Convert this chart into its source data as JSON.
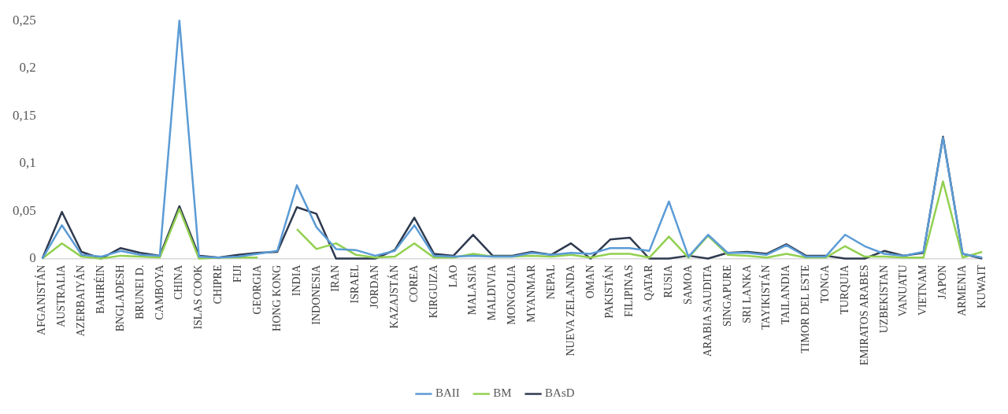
{
  "chart_data": {
    "type": "line",
    "categories": [
      "AFGANISTÁN",
      "AUSTRALIA",
      "AZERBAIYÁN",
      "BAHRÉIN",
      "BNGLADESH",
      "BRUNEI D.",
      "CAMBOYA",
      "CHINA",
      "ISLAS COOK",
      "CHIPRE",
      "FIJI",
      "GEORGIA",
      "HONG KONG",
      "INDIA",
      "INDONESIA",
      "IRAN",
      "ISRAEL",
      "JORDAN",
      "KAZAJSTÁN",
      "COREA",
      "KIRGUIZA",
      "LAO",
      "MALASIA",
      "MALDIVIA",
      "MONGOLIA",
      "MYANMAR",
      "NEPAL",
      "NUEVA ZELANDA",
      "OMAN",
      "PAKISTÁN",
      "FILIPINAS",
      "QATAR",
      "RUSIA",
      "SAMOA",
      "ARABIA SAUDITA",
      "SINGAPURE",
      "SRI LANKA",
      "TAYIKISTÁN",
      "TAILANDIA",
      "TIMOR DEL ESTE",
      "TONGA",
      "TURQUIA",
      "EMIRATOS ARABES",
      "UZBEKISTAN",
      "VANUATU",
      "VIETNAM",
      "JAPON",
      "ARMENIA",
      "KUWAIT"
    ],
    "series": [
      {
        "name": "BAII",
        "color": "#5b9bd5",
        "values": [
          0,
          0.035,
          0.004,
          0.002,
          0.008,
          0.004,
          0.003,
          0.25,
          0.002,
          0.001,
          0.002,
          0.005,
          0.008,
          0.077,
          0.033,
          0.01,
          0.009,
          0.003,
          0.008,
          0.035,
          0.003,
          0.002,
          0.003,
          0.002,
          0.002,
          0.006,
          0.004,
          0.006,
          0.005,
          0.011,
          0.011,
          0.008,
          0.06,
          0.002,
          0.025,
          0.006,
          0.006,
          0.004,
          0.014,
          0.002,
          0.002,
          0.025,
          0.013,
          0.005,
          0.003,
          0.007,
          0.127,
          0.005,
          0.001
        ]
      },
      {
        "name": "BM",
        "color": "#92d050",
        "values": [
          0,
          0.016,
          0.002,
          0,
          0.003,
          0.002,
          0.001,
          0.052,
          0,
          0.001,
          0.001,
          0.001,
          null,
          0.031,
          0.01,
          0.016,
          0.004,
          0.001,
          0.002,
          0.016,
          0.001,
          0.001,
          0.005,
          0.002,
          0.002,
          0.003,
          0.002,
          0.004,
          0.001,
          0.005,
          0.005,
          0.001,
          0.023,
          0.001,
          0.024,
          0.004,
          0.003,
          0.001,
          0.005,
          0.001,
          0.001,
          0.013,
          0.002,
          0.002,
          0.001,
          0.001,
          0.081,
          0.001,
          0.007
        ]
      },
      {
        "name": "BAsD",
        "color": "#2e3a4f",
        "values": [
          0,
          0.049,
          0.007,
          0,
          0.011,
          0.006,
          0.003,
          0.055,
          0.003,
          0.001,
          0.004,
          0.006,
          0.007,
          0.054,
          0.047,
          0,
          0,
          0,
          0.009,
          0.043,
          0.005,
          0.003,
          0.025,
          0.003,
          0.003,
          0.007,
          0.004,
          0.016,
          0,
          0.02,
          0.022,
          0,
          0,
          0.003,
          0,
          0.006,
          0.007,
          0.005,
          0.015,
          0.003,
          0.003,
          0,
          0,
          0.008,
          0.003,
          0.006,
          0.128,
          0.005,
          0
        ]
      }
    ],
    "ylim": [
      0,
      0.25
    ],
    "yticks": [
      0,
      {
        "value": 0.05,
        "label": "0,05"
      },
      {
        "value": 0.1,
        "label": "0,1"
      },
      {
        "value": 0.15,
        "label": "0,15"
      },
      {
        "value": 0.2,
        "label": "0,2"
      },
      {
        "value": 0.25,
        "label": "0,25"
      }
    ],
    "grid": false,
    "legend": "bottom",
    "marker": "none",
    "line_style": "solid"
  }
}
